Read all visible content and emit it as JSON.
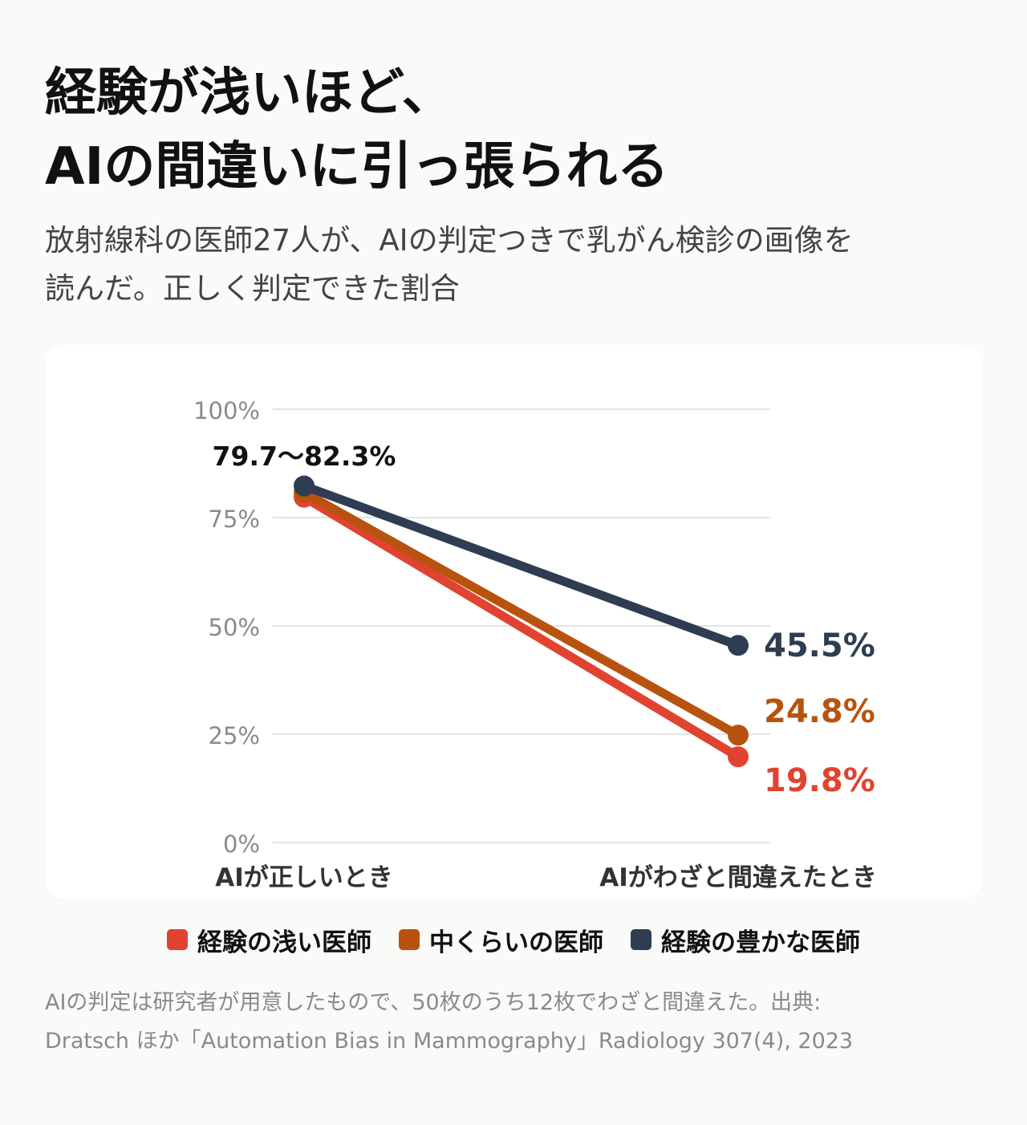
{
  "title": {
    "line1": "経験が浅いほど、",
    "line2": "AIの間違いに引っ張られる"
  },
  "subtitle": {
    "line1": "放射線科の医師27人が、AIの判定つきで乳がん検診の画像を",
    "line2": "読んだ。正しく判定できた割合"
  },
  "footnote": {
    "line1": "AIの判定は研究者が用意したもので、50枚のうち12枚でわざと間違えた。出典:",
    "line2": "Dratsch ほか「Automation Bias in Mammography」Radiology 307(4), 2023"
  },
  "chart_data": {
    "type": "line",
    "categories": [
      "AIが正しいとき",
      "AIがわざと間違えたとき"
    ],
    "ylim": [
      0,
      100
    ],
    "yticks": [
      "0%",
      "25%",
      "50%",
      "75%",
      "100%"
    ],
    "ytick_values": [
      0,
      25,
      50,
      75,
      100
    ],
    "grid": true,
    "legend_position": "bottom",
    "series": [
      {
        "name": "経験の浅い医師",
        "values": [
          79.7,
          19.8
        ],
        "color": "#e0432f",
        "end_label": "19.8%"
      },
      {
        "name": "中くらいの医師",
        "values": [
          80.8,
          24.8
        ],
        "color": "#b8530f",
        "end_label": "24.8%"
      },
      {
        "name": "経験の豊かな医師",
        "values": [
          82.3,
          45.5
        ],
        "color": "#2e3d52",
        "end_label": "45.5%"
      }
    ],
    "start_annotation": "79.7〜82.3%"
  }
}
